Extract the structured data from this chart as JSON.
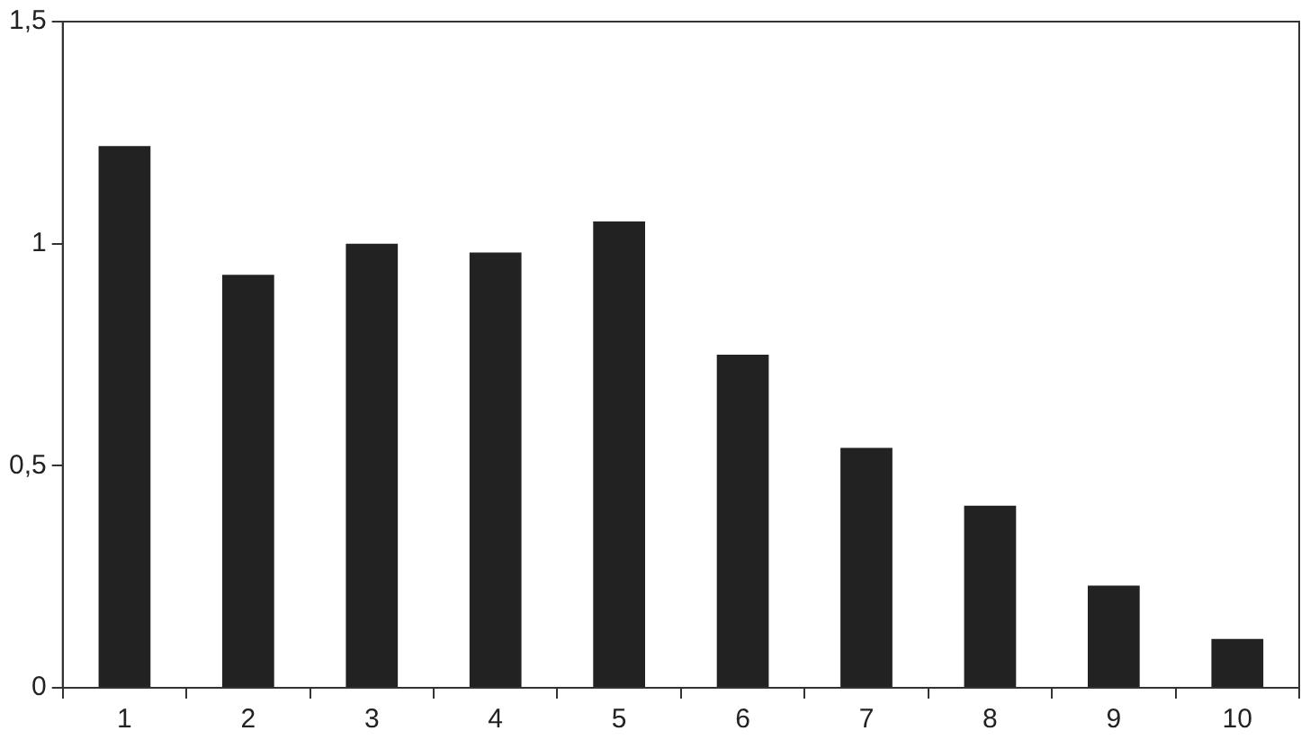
{
  "chart_data": {
    "type": "bar",
    "categories": [
      "1",
      "2",
      "3",
      "4",
      "5",
      "6",
      "7",
      "8",
      "9",
      "10"
    ],
    "values": [
      1.22,
      0.93,
      1.0,
      0.98,
      1.05,
      0.75,
      0.54,
      0.41,
      0.23,
      0.11
    ],
    "color": "#222222",
    "ylim": [
      0,
      1.5
    ],
    "yticks": [
      {
        "value": 0,
        "label": "0"
      },
      {
        "value": 0.5,
        "label": "0,5"
      },
      {
        "value": 1,
        "label": "1"
      },
      {
        "value": 1.5,
        "label": "1,5"
      }
    ],
    "grid": false,
    "legend": false
  }
}
